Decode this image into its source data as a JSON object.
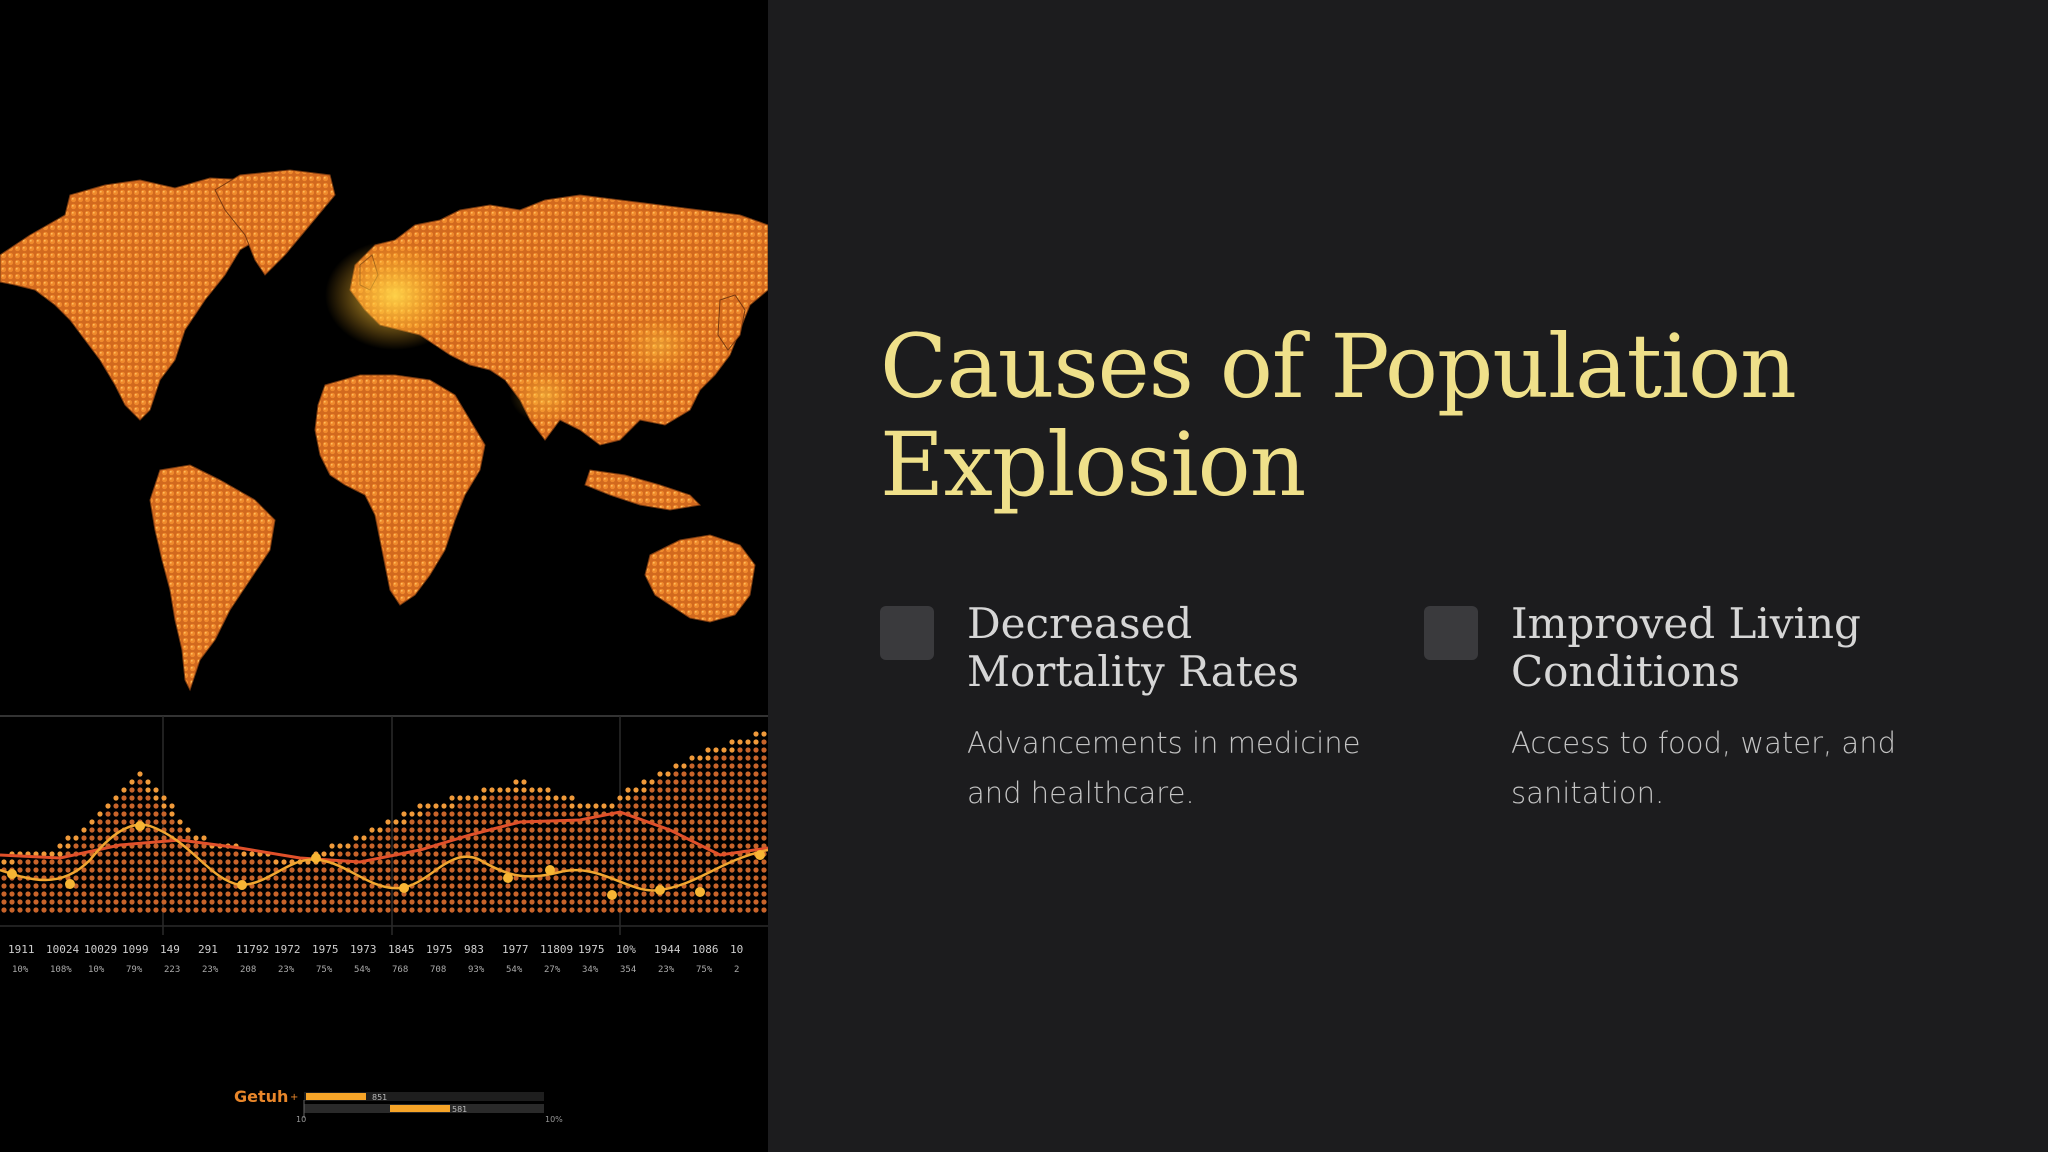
{
  "slide": {
    "title": "Causes of Population Explosion",
    "colors": {
      "background": "#1c1c1e",
      "title": "#efe08a",
      "heading": "#d6d6d6",
      "text": "#c4c4c4",
      "accent": "#f0902a"
    }
  },
  "causes": [
    {
      "icon": "square-bullet-icon",
      "heading": "Decreased Mortality Rates",
      "description": "Advancements in medicine and healthcare."
    },
    {
      "icon": "square-bullet-icon",
      "heading": "Improved Living Conditions",
      "description": "Access to food, water, and sanitation."
    }
  ],
  "illustration": {
    "year_labels": [
      "1911",
      "10024",
      "10029",
      "1099",
      "149",
      "291",
      "11792",
      "1972",
      "1975",
      "1973",
      "1845",
      "1975",
      "983",
      "1977",
      "11809",
      "1975",
      "10%",
      "1944",
      "1086",
      "10"
    ],
    "pct_labels": [
      "10%",
      "108%",
      "10%",
      "79%",
      "223",
      "23%",
      "208",
      "23%",
      "75%",
      "54%",
      "768",
      "708",
      "93%",
      "54%",
      "27%",
      "34%",
      "354",
      "23%",
      "75%",
      "2"
    ],
    "legend": {
      "label": "Getuh",
      "bar1_value": "851",
      "bar2_value": "581",
      "min_label": "10",
      "max_label": "10%"
    }
  }
}
